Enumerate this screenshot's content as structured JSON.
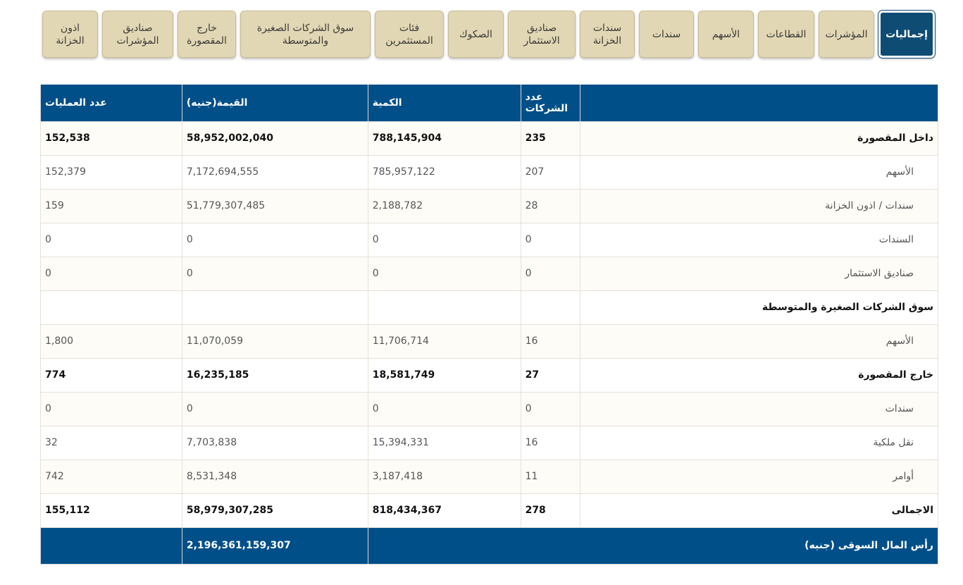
{
  "tabs": [
    {
      "label": "إجماليات",
      "active": true
    },
    {
      "label": "المؤشرات"
    },
    {
      "label": "القطاعات"
    },
    {
      "label": "الأسهم"
    },
    {
      "label": "سندات"
    },
    {
      "label": "سندات\nالخزانة"
    },
    {
      "label": "صناديق\nالاستثمار"
    },
    {
      "label": "الصكوك"
    },
    {
      "label": "فئات\nالمستثمرين"
    },
    {
      "label": "سوق الشركات الصغيرة\nوالمتوسطة"
    },
    {
      "label": "خارج\nالمقصورة"
    },
    {
      "label": "صناديق\nالمؤشرات"
    },
    {
      "label": "اذون\nالخزانة"
    }
  ],
  "table": {
    "headers": {
      "label": "",
      "companies": "عدد الشركات",
      "quantity": "الكمية",
      "value": "القيمة(جنيه)",
      "transactions": "عدد العمليات"
    },
    "rows": [
      {
        "label": "داخل المقصورة",
        "companies": "235",
        "quantity": "788,145,904",
        "value": "58,952,002,040",
        "transactions": "152,538"
      },
      {
        "label": "الأسهم",
        "companies": "207",
        "quantity": "785,957,122",
        "value": "7,172,694,555",
        "transactions": "152,379"
      },
      {
        "label": "سندات / اذون الخزانة",
        "companies": "28",
        "quantity": "2,188,782",
        "value": "51,779,307,485",
        "transactions": "159"
      },
      {
        "label": "السندات",
        "companies": "0",
        "quantity": "0",
        "value": "0",
        "transactions": "0"
      },
      {
        "label": "صناديق الاستثمار",
        "companies": "0",
        "quantity": "0",
        "value": "0",
        "transactions": "0"
      },
      {
        "label": "سوق الشركات الصغيرة والمتوسطة",
        "companies": "",
        "quantity": "",
        "value": "",
        "transactions": ""
      },
      {
        "label": "الأسهم",
        "companies": "16",
        "quantity": "11,706,714",
        "value": "11,070,059",
        "transactions": "1,800"
      },
      {
        "label": "خارج المقصورة",
        "companies": "27",
        "quantity": "18,581,749",
        "value": "16,235,185",
        "transactions": "774"
      },
      {
        "label": "سندات",
        "companies": "0",
        "quantity": "0",
        "value": "0",
        "transactions": "0"
      },
      {
        "label": "نقل ملكية",
        "companies": "16",
        "quantity": "15,394,331",
        "value": "7,703,838",
        "transactions": "32"
      },
      {
        "label": "أوامر",
        "companies": "11",
        "quantity": "3,187,418",
        "value": "8,531,348",
        "transactions": "742"
      },
      {
        "label": "الاجمالى",
        "companies": "278",
        "quantity": "818,434,367",
        "value": "58,979,307,285",
        "transactions": "155,112"
      }
    ],
    "market_cap": {
      "label": "رأس المال السوقى (جنيه)",
      "value": "2,196,361,159,307"
    }
  }
}
